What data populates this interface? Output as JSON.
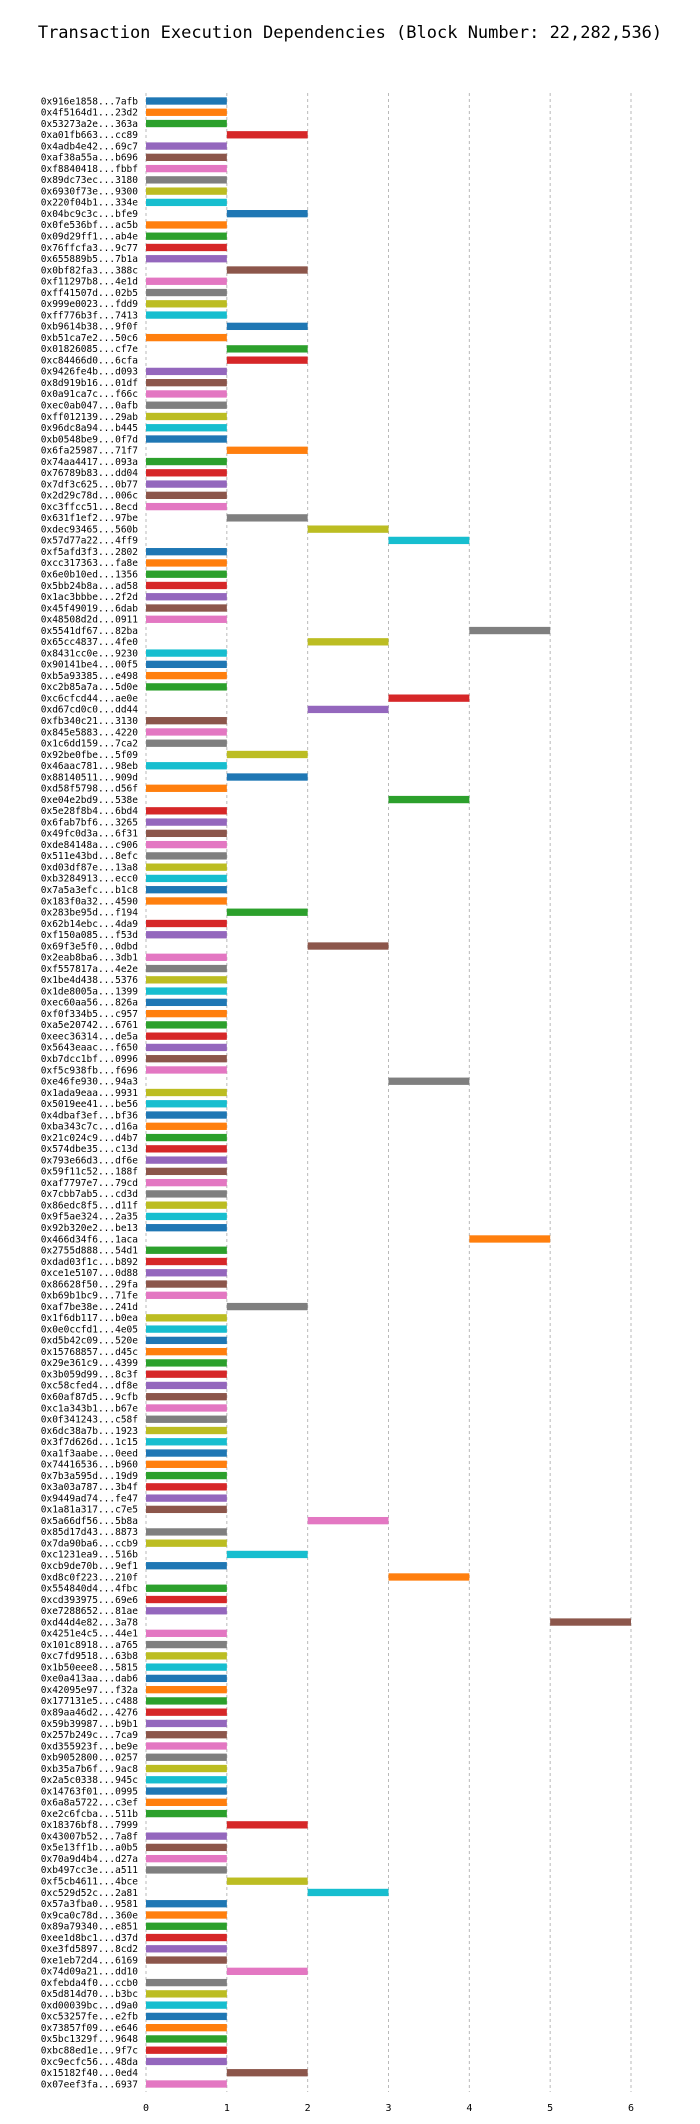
{
  "chart_data": {
    "type": "bar",
    "orientation": "horizontal",
    "title": "Transaction Execution Dependencies (Block Number: 22,282,536)",
    "xlabel": "",
    "ylabel": "",
    "xlim": [
      0,
      6
    ],
    "xticks": [
      "0",
      "1",
      "2",
      "3",
      "4",
      "5",
      "6"
    ],
    "grid": "vertical dashed",
    "colors": [
      "#1f77b4",
      "#ff7f0e",
      "#2ca02c",
      "#d62728",
      "#9467bd",
      "#8c564b",
      "#e377c2",
      "#7f7f7f",
      "#bcbd22",
      "#17becf"
    ],
    "transactions": [
      {
        "tx": "0x916e1858...7afb",
        "start": 0,
        "end": 1
      },
      {
        "tx": "0x4f5164d1...23d2",
        "start": 0,
        "end": 1
      },
      {
        "tx": "0x53273a2e...363a",
        "start": 0,
        "end": 1
      },
      {
        "tx": "0xa01fb663...cc89",
        "start": 1,
        "end": 2
      },
      {
        "tx": "0x4adb4e42...69c7",
        "start": 0,
        "end": 1
      },
      {
        "tx": "0xaf38a55a...b696",
        "start": 0,
        "end": 1
      },
      {
        "tx": "0xf8840418...fbbf",
        "start": 0,
        "end": 1
      },
      {
        "tx": "0x89dc73ec...3180",
        "start": 0,
        "end": 1
      },
      {
        "tx": "0x6930f73e...9300",
        "start": 0,
        "end": 1
      },
      {
        "tx": "0x220f04b1...334e",
        "start": 0,
        "end": 1
      },
      {
        "tx": "0x04bc9c3c...bfe9",
        "start": 1,
        "end": 2
      },
      {
        "tx": "0x0fe536bf...ac5b",
        "start": 0,
        "end": 1
      },
      {
        "tx": "0x09d29ff1...ab4e",
        "start": 0,
        "end": 1
      },
      {
        "tx": "0x76ffcfa3...9c77",
        "start": 0,
        "end": 1
      },
      {
        "tx": "0x655889b5...7b1a",
        "start": 0,
        "end": 1
      },
      {
        "tx": "0x0bf82fa3...388c",
        "start": 1,
        "end": 2
      },
      {
        "tx": "0xf11297b8...4e1d",
        "start": 0,
        "end": 1
      },
      {
        "tx": "0xff41507d...02b5",
        "start": 0,
        "end": 1
      },
      {
        "tx": "0x999e0023...fdd9",
        "start": 0,
        "end": 1
      },
      {
        "tx": "0xff776b3f...7413",
        "start": 0,
        "end": 1
      },
      {
        "tx": "0xb9614b38...9f0f",
        "start": 1,
        "end": 2
      },
      {
        "tx": "0xb51ca7e2...50c6",
        "start": 0,
        "end": 1
      },
      {
        "tx": "0x01826085...cf7e",
        "start": 1,
        "end": 2
      },
      {
        "tx": "0xc84466d0...6cfa",
        "start": 1,
        "end": 2
      },
      {
        "tx": "0x9426fe4b...d093",
        "start": 0,
        "end": 1
      },
      {
        "tx": "0x8d919b16...01df",
        "start": 0,
        "end": 1
      },
      {
        "tx": "0x0a91ca7c...f66c",
        "start": 0,
        "end": 1
      },
      {
        "tx": "0xec0ab047...0afb",
        "start": 0,
        "end": 1
      },
      {
        "tx": "0xff012139...29ab",
        "start": 0,
        "end": 1
      },
      {
        "tx": "0x96dc8a94...b445",
        "start": 0,
        "end": 1
      },
      {
        "tx": "0xb0548be9...0f7d",
        "start": 0,
        "end": 1
      },
      {
        "tx": "0x6fa25987...71f7",
        "start": 1,
        "end": 2
      },
      {
        "tx": "0x74aa4417...093a",
        "start": 0,
        "end": 1
      },
      {
        "tx": "0x76789b83...dd04",
        "start": 0,
        "end": 1
      },
      {
        "tx": "0x7df3c625...0b77",
        "start": 0,
        "end": 1
      },
      {
        "tx": "0x2d29c78d...006c",
        "start": 0,
        "end": 1
      },
      {
        "tx": "0xc3ffcc51...8ecd",
        "start": 0,
        "end": 1
      },
      {
        "tx": "0x631f1ef2...97be",
        "start": 1,
        "end": 2
      },
      {
        "tx": "0xdec93465...560b",
        "start": 2,
        "end": 3
      },
      {
        "tx": "0x57d77a22...4ff9",
        "start": 3,
        "end": 4
      },
      {
        "tx": "0xf5afd3f3...2802",
        "start": 0,
        "end": 1
      },
      {
        "tx": "0xcc317363...fa8e",
        "start": 0,
        "end": 1
      },
      {
        "tx": "0x6e0b10ed...1356",
        "start": 0,
        "end": 1
      },
      {
        "tx": "0x5bb24b8a...ad58",
        "start": 0,
        "end": 1
      },
      {
        "tx": "0x1ac3bbbe...2f2d",
        "start": 0,
        "end": 1
      },
      {
        "tx": "0x45f49019...6dab",
        "start": 0,
        "end": 1
      },
      {
        "tx": "0x48508d2d...0911",
        "start": 0,
        "end": 1
      },
      {
        "tx": "0x5541df67...82ba",
        "start": 4,
        "end": 5
      },
      {
        "tx": "0x65cc4837...4fe0",
        "start": 2,
        "end": 3
      },
      {
        "tx": "0x8431cc0e...9230",
        "start": 0,
        "end": 1
      },
      {
        "tx": "0x90141be4...00f5",
        "start": 0,
        "end": 1
      },
      {
        "tx": "0xb5a93385...e498",
        "start": 0,
        "end": 1
      },
      {
        "tx": "0xc2b85a7a...5d0e",
        "start": 0,
        "end": 1
      },
      {
        "tx": "0xc6cfcd44...ae0e",
        "start": 3,
        "end": 4
      },
      {
        "tx": "0xd67cd0c0...dd44",
        "start": 2,
        "end": 3
      },
      {
        "tx": "0xfb340c21...3130",
        "start": 0,
        "end": 1
      },
      {
        "tx": "0x845e5883...4220",
        "start": 0,
        "end": 1
      },
      {
        "tx": "0x1c6dd159...7ca2",
        "start": 0,
        "end": 1
      },
      {
        "tx": "0x92be0fbe...5f09",
        "start": 1,
        "end": 2
      },
      {
        "tx": "0x46aac781...98eb",
        "start": 0,
        "end": 1
      },
      {
        "tx": "0x88140511...909d",
        "start": 1,
        "end": 2
      },
      {
        "tx": "0xd58f5798...d56f",
        "start": 0,
        "end": 1
      },
      {
        "tx": "0xe04e2bd9...538e",
        "start": 3,
        "end": 4
      },
      {
        "tx": "0x5e28f8b4...6bd4",
        "start": 0,
        "end": 1
      },
      {
        "tx": "0x6fab7bf6...3265",
        "start": 0,
        "end": 1
      },
      {
        "tx": "0x49fc0d3a...6f31",
        "start": 0,
        "end": 1
      },
      {
        "tx": "0xde84148a...c906",
        "start": 0,
        "end": 1
      },
      {
        "tx": "0x511e43bd...8efc",
        "start": 0,
        "end": 1
      },
      {
        "tx": "0xd03df87e...13a8",
        "start": 0,
        "end": 1
      },
      {
        "tx": "0xb3284913...ecc0",
        "start": 0,
        "end": 1
      },
      {
        "tx": "0x7a5a3efc...b1c8",
        "start": 0,
        "end": 1
      },
      {
        "tx": "0x183f0a32...4590",
        "start": 0,
        "end": 1
      },
      {
        "tx": "0x283be95d...f194",
        "start": 1,
        "end": 2
      },
      {
        "tx": "0x62b14ebc...4da9",
        "start": 0,
        "end": 1
      },
      {
        "tx": "0xf150a085...f53d",
        "start": 0,
        "end": 1
      },
      {
        "tx": "0x69f3e5f0...0dbd",
        "start": 2,
        "end": 3
      },
      {
        "tx": "0x2eab8ba6...3db1",
        "start": 0,
        "end": 1
      },
      {
        "tx": "0xf557817a...4e2e",
        "start": 0,
        "end": 1
      },
      {
        "tx": "0x1be4d438...5376",
        "start": 0,
        "end": 1
      },
      {
        "tx": "0x1de8005a...1399",
        "start": 0,
        "end": 1
      },
      {
        "tx": "0xec60aa56...826a",
        "start": 0,
        "end": 1
      },
      {
        "tx": "0xf0f334b5...c957",
        "start": 0,
        "end": 1
      },
      {
        "tx": "0xa5e20742...6761",
        "start": 0,
        "end": 1
      },
      {
        "tx": "0xeec36314...de5a",
        "start": 0,
        "end": 1
      },
      {
        "tx": "0x5643eaac...f650",
        "start": 0,
        "end": 1
      },
      {
        "tx": "0xb7dcc1bf...0996",
        "start": 0,
        "end": 1
      },
      {
        "tx": "0xf5c938fb...f696",
        "start": 0,
        "end": 1
      },
      {
        "tx": "0xe46fe930...94a3",
        "start": 3,
        "end": 4
      },
      {
        "tx": "0x1ada9eaa...9931",
        "start": 0,
        "end": 1
      },
      {
        "tx": "0x5019ee41...be56",
        "start": 0,
        "end": 1
      },
      {
        "tx": "0x4dbaf3ef...bf36",
        "start": 0,
        "end": 1
      },
      {
        "tx": "0xba343c7c...d16a",
        "start": 0,
        "end": 1
      },
      {
        "tx": "0x21c024c9...d4b7",
        "start": 0,
        "end": 1
      },
      {
        "tx": "0x574dbe35...c13d",
        "start": 0,
        "end": 1
      },
      {
        "tx": "0x793e66d3...df6e",
        "start": 0,
        "end": 1
      },
      {
        "tx": "0x59f11c52...188f",
        "start": 0,
        "end": 1
      },
      {
        "tx": "0xaf7797e7...79cd",
        "start": 0,
        "end": 1
      },
      {
        "tx": "0x7cbb7ab5...cd3d",
        "start": 0,
        "end": 1
      },
      {
        "tx": "0x86edc8f5...d11f",
        "start": 0,
        "end": 1
      },
      {
        "tx": "0x9f5ae324...2a35",
        "start": 0,
        "end": 1
      },
      {
        "tx": "0x92b320e2...be13",
        "start": 0,
        "end": 1
      },
      {
        "tx": "0x466d34f6...1aca",
        "start": 4,
        "end": 5
      },
      {
        "tx": "0x2755d888...54d1",
        "start": 0,
        "end": 1
      },
      {
        "tx": "0xdad03f1c...b892",
        "start": 0,
        "end": 1
      },
      {
        "tx": "0xce1e5107...0d88",
        "start": 0,
        "end": 1
      },
      {
        "tx": "0x86628f50...29fa",
        "start": 0,
        "end": 1
      },
      {
        "tx": "0xb69b1bc9...71fe",
        "start": 0,
        "end": 1
      },
      {
        "tx": "0xaf7be38e...241d",
        "start": 1,
        "end": 2
      },
      {
        "tx": "0x1f6db117...b0ea",
        "start": 0,
        "end": 1
      },
      {
        "tx": "0x0e0ccfd1...4e05",
        "start": 0,
        "end": 1
      },
      {
        "tx": "0xd5b42c09...520e",
        "start": 0,
        "end": 1
      },
      {
        "tx": "0x15768857...d45c",
        "start": 0,
        "end": 1
      },
      {
        "tx": "0x29e361c9...4399",
        "start": 0,
        "end": 1
      },
      {
        "tx": "0x3b059d99...8c3f",
        "start": 0,
        "end": 1
      },
      {
        "tx": "0xc58cfed4...df8e",
        "start": 0,
        "end": 1
      },
      {
        "tx": "0x60af87d5...9cfb",
        "start": 0,
        "end": 1
      },
      {
        "tx": "0xc1a343b1...b67e",
        "start": 0,
        "end": 1
      },
      {
        "tx": "0x0f341243...c58f",
        "start": 0,
        "end": 1
      },
      {
        "tx": "0x6dc38a7b...1923",
        "start": 0,
        "end": 1
      },
      {
        "tx": "0x3f7d626d...1c15",
        "start": 0,
        "end": 1
      },
      {
        "tx": "0xa1f3aabe...0eed",
        "start": 0,
        "end": 1
      },
      {
        "tx": "0x74416536...b960",
        "start": 0,
        "end": 1
      },
      {
        "tx": "0x7b3a595d...19d9",
        "start": 0,
        "end": 1
      },
      {
        "tx": "0x3a03a787...3b4f",
        "start": 0,
        "end": 1
      },
      {
        "tx": "0x9449ad74...fe47",
        "start": 0,
        "end": 1
      },
      {
        "tx": "0x1a81a317...c7e5",
        "start": 0,
        "end": 1
      },
      {
        "tx": "0x5a66df56...5b8a",
        "start": 2,
        "end": 3
      },
      {
        "tx": "0x85d17d43...8873",
        "start": 0,
        "end": 1
      },
      {
        "tx": "0x7da90ba6...ccb9",
        "start": 0,
        "end": 1
      },
      {
        "tx": "0xc1231ea9...516b",
        "start": 1,
        "end": 2
      },
      {
        "tx": "0xcb9de70b...9ef1",
        "start": 0,
        "end": 1
      },
      {
        "tx": "0xd8c0f223...210f",
        "start": 3,
        "end": 4
      },
      {
        "tx": "0x554840d4...4fbc",
        "start": 0,
        "end": 1
      },
      {
        "tx": "0xcd393975...69e6",
        "start": 0,
        "end": 1
      },
      {
        "tx": "0xe7288652...81ae",
        "start": 0,
        "end": 1
      },
      {
        "tx": "0xd44d4e82...3a78",
        "start": 5,
        "end": 6
      },
      {
        "tx": "0x4251e4c5...44e1",
        "start": 0,
        "end": 1
      },
      {
        "tx": "0x101c8918...a765",
        "start": 0,
        "end": 1
      },
      {
        "tx": "0xc7fd9518...63b8",
        "start": 0,
        "end": 1
      },
      {
        "tx": "0x1b50eee8...5815",
        "start": 0,
        "end": 1
      },
      {
        "tx": "0xe0a413aa...dab6",
        "start": 0,
        "end": 1
      },
      {
        "tx": "0x42095e97...f32a",
        "start": 0,
        "end": 1
      },
      {
        "tx": "0x177131e5...c488",
        "start": 0,
        "end": 1
      },
      {
        "tx": "0x89aa46d2...4276",
        "start": 0,
        "end": 1
      },
      {
        "tx": "0x59b39987...b9b1",
        "start": 0,
        "end": 1
      },
      {
        "tx": "0x257b249c...7ca9",
        "start": 0,
        "end": 1
      },
      {
        "tx": "0xd355923f...be9e",
        "start": 0,
        "end": 1
      },
      {
        "tx": "0xb9052800...0257",
        "start": 0,
        "end": 1
      },
      {
        "tx": "0xb35a7b6f...9ac8",
        "start": 0,
        "end": 1
      },
      {
        "tx": "0x2a5c0338...945c",
        "start": 0,
        "end": 1
      },
      {
        "tx": "0x14763f01...0995",
        "start": 0,
        "end": 1
      },
      {
        "tx": "0x6a8a5722...c3ef",
        "start": 0,
        "end": 1
      },
      {
        "tx": "0xe2c6fcba...511b",
        "start": 0,
        "end": 1
      },
      {
        "tx": "0x18376bf8...7999",
        "start": 1,
        "end": 2
      },
      {
        "tx": "0x43007b52...7a8f",
        "start": 0,
        "end": 1
      },
      {
        "tx": "0x5e13ff1b...a0b5",
        "start": 0,
        "end": 1
      },
      {
        "tx": "0x70a9d4b4...d27a",
        "start": 0,
        "end": 1
      },
      {
        "tx": "0xb497cc3e...a511",
        "start": 0,
        "end": 1
      },
      {
        "tx": "0xf5cb4611...4bce",
        "start": 1,
        "end": 2
      },
      {
        "tx": "0xc529d52c...2a81",
        "start": 2,
        "end": 3
      },
      {
        "tx": "0x57a3fba0...9581",
        "start": 0,
        "end": 1
      },
      {
        "tx": "0x9ca0c78d...360e",
        "start": 0,
        "end": 1
      },
      {
        "tx": "0x89a79340...e851",
        "start": 0,
        "end": 1
      },
      {
        "tx": "0xee1d8bc1...d37d",
        "start": 0,
        "end": 1
      },
      {
        "tx": "0xe3fd5897...8cd2",
        "start": 0,
        "end": 1
      },
      {
        "tx": "0xe1eb72d4...6169",
        "start": 0,
        "end": 1
      },
      {
        "tx": "0x74d09a21...dd10",
        "start": 1,
        "end": 2
      },
      {
        "tx": "0xfebda4f0...ccb0",
        "start": 0,
        "end": 1
      },
      {
        "tx": "0x5d814d70...b3bc",
        "start": 0,
        "end": 1
      },
      {
        "tx": "0xd00039bc...d9a0",
        "start": 0,
        "end": 1
      },
      {
        "tx": "0xc53257fe...e2fb",
        "start": 0,
        "end": 1
      },
      {
        "tx": "0x73857f09...e646",
        "start": 0,
        "end": 1
      },
      {
        "tx": "0x5bc1329f...9648",
        "start": 0,
        "end": 1
      },
      {
        "tx": "0xbc88ed1e...9f7c",
        "start": 0,
        "end": 1
      },
      {
        "tx": "0xc9ecfc56...48da",
        "start": 0,
        "end": 1
      },
      {
        "tx": "0x15182f40...0ed4",
        "start": 1,
        "end": 2
      },
      {
        "tx": "0x07eef3fa...6937",
        "start": 0,
        "end": 1
      }
    ]
  }
}
